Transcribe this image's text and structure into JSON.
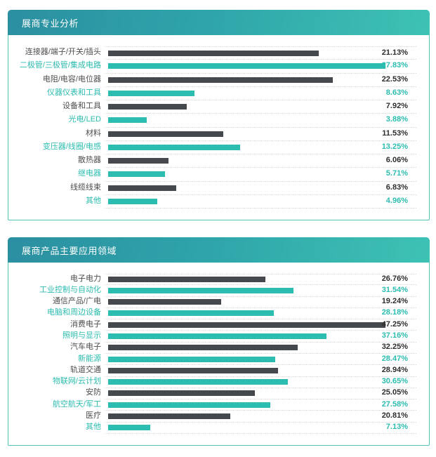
{
  "colors": {
    "teal": "#2cbcb0",
    "dark_bar": "#45484c",
    "dark_label_text": "#4e4e4e",
    "value_dark_text": "#2d2d2d",
    "panel_border": "#52c5bb",
    "header_gradient_start": "#2b8fa1",
    "header_gradient_end": "#3ec2b4"
  },
  "chart_data": [
    {
      "type": "bar",
      "orientation": "horizontal",
      "title": "展商专业分析",
      "legend": "none",
      "grid": "dotted row separators",
      "bar_color_pattern": [
        "dark",
        "teal"
      ],
      "xlim": [
        0,
        27.83
      ],
      "categories": [
        "连接器/端子/开关/插头",
        "二极管/三极管/集成电路",
        "电阻/电容/电位器",
        "仪器仪表和工具",
        "设备和工具",
        "光电/LED",
        "材料",
        "变压器/线圈/电感",
        "散热器",
        "继电器",
        "线缆线束",
        "其他"
      ],
      "values": [
        21.13,
        27.83,
        22.53,
        8.63,
        7.92,
        3.88,
        11.53,
        13.25,
        6.06,
        5.71,
        6.83,
        4.96
      ],
      "value_labels": [
        "21.13%",
        "27.83%",
        "22.53%",
        "8.63%",
        "7.92%",
        "3.88%",
        "11.53%",
        "13.25%",
        "6.06%",
        "5.71%",
        "6.83%",
        "4.96%"
      ]
    },
    {
      "type": "bar",
      "orientation": "horizontal",
      "title": "展商产品主要应用领域",
      "legend": "none",
      "grid": "dotted row separators",
      "bar_color_pattern": [
        "dark",
        "teal"
      ],
      "xlim": [
        0,
        47.25
      ],
      "categories": [
        "电子电力",
        "工业控制与自动化",
        "通信产品/广电",
        "电脑和周边设备",
        "消费电子",
        "照明与显示",
        "汽车电子",
        "新能源",
        "轨道交通",
        "物联网/云计划",
        "安防",
        "航空航天/军工",
        "医疗",
        "其他"
      ],
      "values": [
        26.76,
        31.54,
        19.24,
        28.18,
        47.25,
        37.16,
        32.25,
        28.47,
        28.94,
        30.65,
        25.05,
        27.58,
        20.81,
        7.13
      ],
      "value_labels": [
        "26.76%",
        "31.54%",
        "19.24%",
        "28.18%",
        "47.25%",
        "37.16%",
        "32.25%",
        "28.47%",
        "28.94%",
        "30.65%",
        "25.05%",
        "27.58%",
        "20.81%",
        "7.13%"
      ]
    }
  ]
}
